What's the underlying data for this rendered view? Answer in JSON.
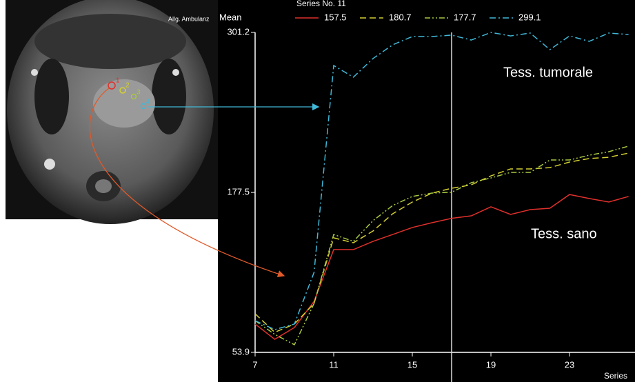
{
  "chart_data": {
    "type": "line",
    "header": "Series No. 11",
    "y_axis_label": "Mean",
    "x_axis_label": "Series",
    "image_label": "Allg. Ambulanz",
    "roi_labels": [
      "1",
      "2",
      "3",
      "4"
    ],
    "annotations": [
      "Tess. tumorale",
      "Tess. sano"
    ],
    "x": [
      7,
      8,
      9,
      10,
      11,
      12,
      13,
      14,
      15,
      16,
      17,
      18,
      19,
      20,
      21,
      22,
      23,
      24,
      25,
      26
    ],
    "xlim": [
      7,
      26.7
    ],
    "xticks": [
      7,
      11,
      15,
      19,
      23
    ],
    "ylim": [
      53.9,
      301.2
    ],
    "yticks": [
      53.9,
      177.5,
      301.2
    ],
    "cursor_x": 17,
    "series": [
      {
        "name": "157.5",
        "color": "#e0302c",
        "linestyle": "solid",
        "values": [
          75.8,
          64.0,
          73.1,
          93.3,
          133.3,
          133.3,
          139.7,
          145.0,
          150.4,
          154.1,
          157.5,
          159.4,
          166.4,
          160.5,
          164.2,
          165.3,
          175.9,
          172.8,
          170.1,
          174.4
        ]
      },
      {
        "name": "180.7",
        "color": "#d4d030",
        "linestyle": "dashed",
        "values": [
          83.7,
          69.4,
          75.8,
          91.7,
          142.4,
          138.6,
          147.7,
          161.0,
          170.1,
          177.0,
          180.7,
          183.4,
          190.3,
          195.7,
          195.7,
          196.7,
          201.0,
          203.7,
          204.7,
          207.9
        ]
      },
      {
        "name": "177.7",
        "color": "#a8c840",
        "linestyle": "dashdotdot",
        "values": [
          78.4,
          67.8,
          59.8,
          91.7,
          145.0,
          139.7,
          155.7,
          167.4,
          174.4,
          177.0,
          177.7,
          185.0,
          188.7,
          193.0,
          193.0,
          202.6,
          202.6,
          206.3,
          209.0,
          213.3
        ]
      },
      {
        "name": "299.1",
        "color": "#40b8d8",
        "linestyle": "dashdot",
        "values": [
          78.4,
          71.5,
          75.8,
          115.7,
          275.6,
          266.6,
          281.0,
          291.6,
          298.0,
          298.0,
          299.1,
          295.3,
          301.2,
          298.5,
          300.7,
          287.9,
          298.5,
          294.3,
          300.7,
          299.6
        ]
      }
    ]
  }
}
